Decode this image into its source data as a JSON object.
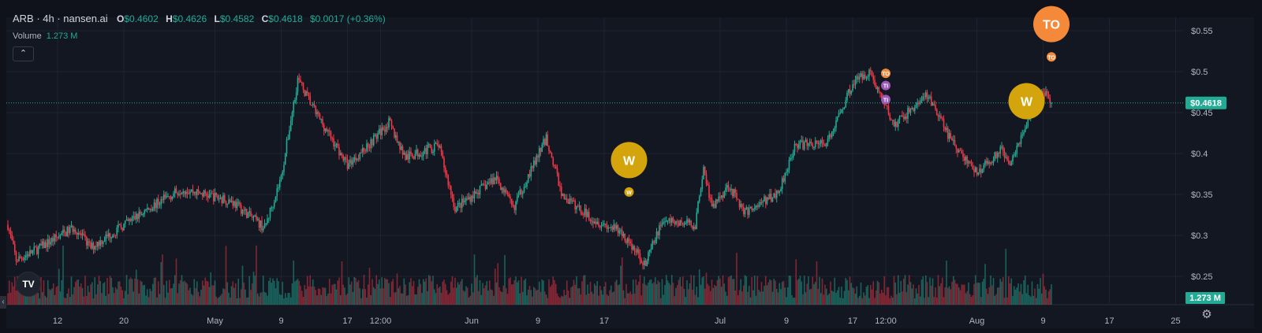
{
  "legend": {
    "symbol": "ARB · 4h · nansen.ai",
    "open_label": "O",
    "open": "$0.4602",
    "high_label": "H",
    "high": "$0.4626",
    "low_label": "L",
    "low": "$0.4582",
    "close_label": "C",
    "close": "$0.4618",
    "change": "$0.0017 (+0.36%)",
    "volume_label": "Volume",
    "volume_value": "1.273 M",
    "collapse_icon": "chevron-up-icon"
  },
  "logo": "TV",
  "colors": {
    "up": "#22ab94",
    "down": "#f23645",
    "background": "#131722",
    "grid": "#1f2330",
    "price_badge": "#22ab94",
    "marker_w": "#d4a40c",
    "marker_to": "#f5893a",
    "marker_ti": "#9c59b6"
  },
  "chart_data": {
    "type": "candlestick",
    "interval": "4h",
    "ylim": [
      0.22,
      0.57
    ],
    "y_ticks": [
      "$0.55",
      "$0.5",
      "$0.45",
      "$0.4",
      "$0.35",
      "$0.3",
      "$0.25"
    ],
    "y_tick_values": [
      0.55,
      0.5,
      0.45,
      0.4,
      0.35,
      0.3,
      0.25
    ],
    "x_ticks": [
      "12",
      "20",
      "May",
      "9",
      "17",
      "12:00",
      "Jun",
      "9",
      "17",
      "Jul",
      "9",
      "17",
      "12:00",
      "Aug",
      "9",
      "17",
      "25"
    ],
    "x_tick_dates": [
      "Apr 12",
      "Apr 20",
      "May 1",
      "May 9",
      "May 17",
      "May 21",
      "Jun 1",
      "Jun 9",
      "Jun 17",
      "Jul 1",
      "Jul 9",
      "Jul 17",
      "Jul 21",
      "Aug 1",
      "Aug 9",
      "Aug 17",
      "Aug 25"
    ],
    "xlim": [
      "Apr 6",
      "Aug 28"
    ],
    "price_path": [
      [
        "Apr 6",
        0.313
      ],
      [
        "Apr 7",
        0.27
      ],
      [
        "Apr 9",
        0.28
      ],
      [
        "Apr 14",
        0.31
      ],
      [
        "Apr 16",
        0.285
      ],
      [
        "Apr 23",
        0.333
      ],
      [
        "Apr 27",
        0.357
      ],
      [
        "May 3",
        0.342
      ],
      [
        "May 7",
        0.309
      ],
      [
        "May 9",
        0.371
      ],
      [
        "May 11",
        0.491
      ],
      [
        "May 13",
        0.453
      ],
      [
        "May 17",
        0.386
      ],
      [
        "May 19",
        0.405
      ],
      [
        "May 22",
        0.438
      ],
      [
        "May 24",
        0.395
      ],
      [
        "May 28",
        0.41
      ],
      [
        "May 30",
        0.333
      ],
      [
        "Jun 4",
        0.371
      ],
      [
        "Jun 6",
        0.333
      ],
      [
        "Jun 10",
        0.419
      ],
      [
        "Jun 12",
        0.347
      ],
      [
        "Jun 16",
        0.318
      ],
      [
        "Jun 19",
        0.304
      ],
      [
        "Jun 22",
        0.265
      ],
      [
        "Jun 24",
        0.318
      ],
      [
        "Jun 28",
        0.313
      ],
      [
        "Jun 29",
        0.386
      ],
      [
        "Jun 30",
        0.333
      ],
      [
        "Jul 2",
        0.362
      ],
      [
        "Jul 4",
        0.328
      ],
      [
        "Jul 8",
        0.352
      ],
      [
        "Jul 10",
        0.41
      ],
      [
        "Jul 14",
        0.414
      ],
      [
        "Jul 17",
        0.486
      ],
      [
        "Jul 19",
        0.501
      ],
      [
        "Jul 22",
        0.434
      ],
      [
        "Jul 26",
        0.472
      ],
      [
        "Jul 29",
        0.414
      ],
      [
        "Aug 1",
        0.376
      ],
      [
        "Aug 4",
        0.405
      ],
      [
        "Aug 5",
        0.39
      ],
      [
        "Aug 8",
        0.458
      ],
      [
        "Aug 9",
        0.477
      ],
      [
        "Aug 10",
        0.4618
      ]
    ],
    "last_price": "$0.4618",
    "last_volume": "1.273 M",
    "markers": [
      {
        "label": "W",
        "date": "Jun 20",
        "price": 0.392,
        "size": "large",
        "kind": "w"
      },
      {
        "label": "W",
        "date": "Jun 20",
        "price": 0.353,
        "size": "small",
        "kind": "w"
      },
      {
        "label": "TO",
        "date": "Jul 21",
        "price": 0.498,
        "size": "small",
        "kind": "to"
      },
      {
        "label": "TI",
        "date": "Jul 21",
        "price": 0.483,
        "size": "small",
        "kind": "ti"
      },
      {
        "label": "TI",
        "date": "Jul 21",
        "price": 0.466,
        "size": "small",
        "kind": "ti"
      },
      {
        "label": "W",
        "date": "Aug 7",
        "price": 0.464,
        "size": "large",
        "kind": "w"
      },
      {
        "label": "TO",
        "date": "Aug 10",
        "price": 0.558,
        "size": "large",
        "kind": "to"
      },
      {
        "label": "TO",
        "date": "Aug 10",
        "price": 0.518,
        "size": "small",
        "kind": "to"
      }
    ]
  }
}
